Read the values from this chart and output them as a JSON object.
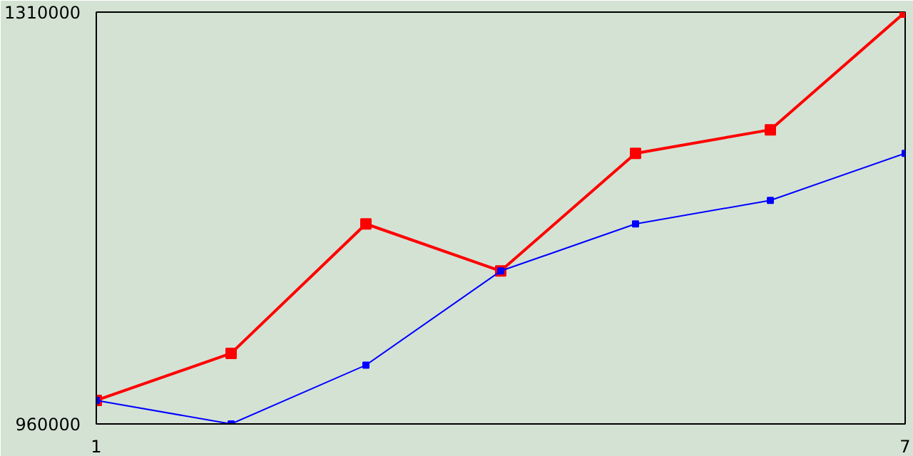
{
  "chart_data": {
    "type": "line",
    "x": [
      1,
      2,
      3,
      4,
      5,
      6,
      7
    ],
    "series": [
      {
        "color": "#ff0000",
        "values": [
          980000,
          1020000,
          1130000,
          1090000,
          1190000,
          1210000,
          1310000
        ]
      },
      {
        "color": "#0000ff",
        "values": [
          980000,
          960000,
          1010000,
          1090000,
          1130000,
          1150000,
          1190000
        ]
      }
    ],
    "xlim": [
      1,
      7
    ],
    "xticks": [
      1,
      7
    ],
    "ylim": [
      960000,
      1310000
    ],
    "yticks": [
      960000,
      1310000
    ],
    "marker": "square",
    "line_style": "solid"
  }
}
